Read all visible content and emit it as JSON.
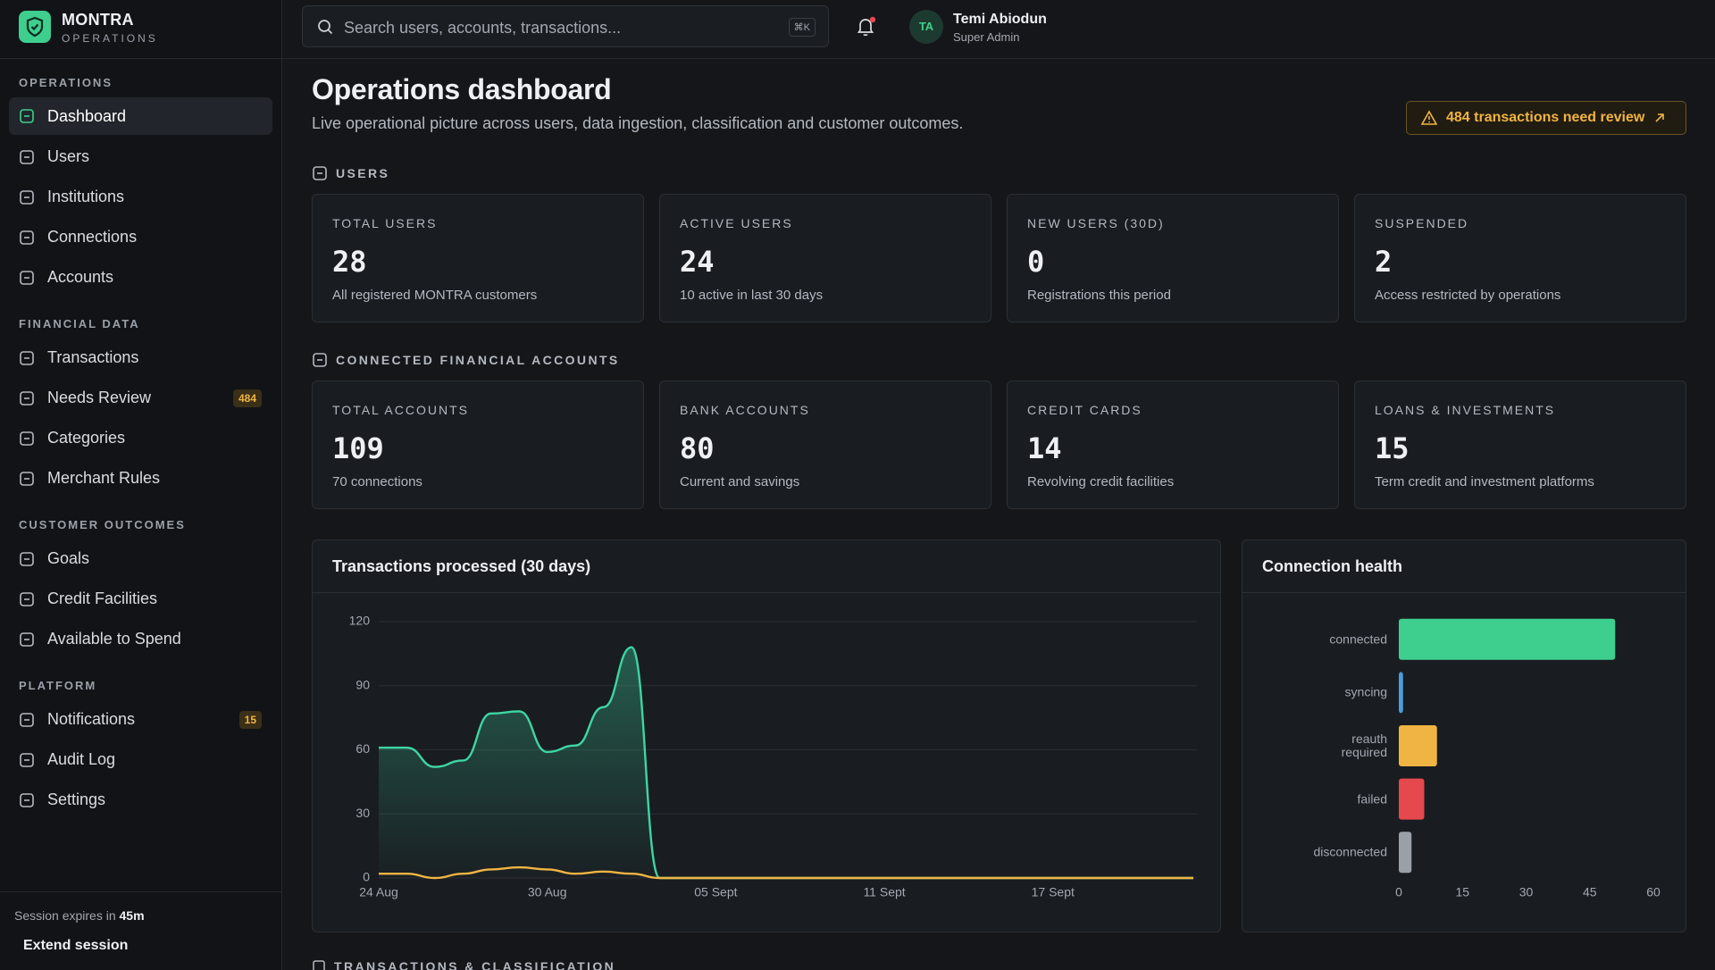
{
  "brand": {
    "name": "MONTRA",
    "tagline": "OPERATIONS"
  },
  "search": {
    "placeholder": "Search users, accounts, transactions...",
    "shortcut": "⌘K"
  },
  "user": {
    "initials": "TA",
    "name": "Temi Abiodun",
    "role": "Super Admin"
  },
  "nav": [
    {
      "title": "OPERATIONS",
      "items": [
        {
          "label": "Dashboard",
          "active": true
        },
        {
          "label": "Users"
        },
        {
          "label": "Institutions"
        },
        {
          "label": "Connections"
        },
        {
          "label": "Accounts"
        }
      ]
    },
    {
      "title": "FINANCIAL DATA",
      "items": [
        {
          "label": "Transactions"
        },
        {
          "label": "Needs Review",
          "badge": 484
        },
        {
          "label": "Categories"
        },
        {
          "label": "Merchant Rules"
        }
      ]
    },
    {
      "title": "CUSTOMER OUTCOMES",
      "items": [
        {
          "label": "Goals"
        },
        {
          "label": "Credit Facilities"
        },
        {
          "label": "Available to Spend"
        }
      ]
    },
    {
      "title": "PLATFORM",
      "items": [
        {
          "label": "Notifications",
          "badge": 15
        },
        {
          "label": "Audit Log"
        },
        {
          "label": "Settings"
        }
      ]
    }
  ],
  "session": {
    "text": "Session expires in",
    "time": "45m",
    "action": "Extend session"
  },
  "page": {
    "title": "Operations dashboard",
    "subtitle": "Live operational picture across users, data ingestion, classification and customer outcomes.",
    "alert": "484 transactions need review"
  },
  "sections": [
    {
      "title": "USERS",
      "cards": [
        {
          "label": "TOTAL USERS",
          "value": 28,
          "note": "All registered MONTRA customers"
        },
        {
          "label": "ACTIVE USERS",
          "value": 24,
          "note": "10 active in last 30 days"
        },
        {
          "label": "NEW USERS (30D)",
          "value": 0,
          "note": "Registrations this period"
        },
        {
          "label": "SUSPENDED",
          "value": 2,
          "note": "Access restricted by operations"
        }
      ]
    },
    {
      "title": "CONNECTED FINANCIAL ACCOUNTS",
      "cards": [
        {
          "label": "TOTAL ACCOUNTS",
          "value": 109,
          "note": "70 connections"
        },
        {
          "label": "BANK ACCOUNTS",
          "value": 80,
          "note": "Current and savings"
        },
        {
          "label": "CREDIT CARDS",
          "value": 14,
          "note": "Revolving credit facilities"
        },
        {
          "label": "LOANS & INVESTMENTS",
          "value": 15,
          "note": "Term credit and investment platforms"
        }
      ]
    }
  ],
  "next_section": "TRANSACTIONS & CLASSIFICATION",
  "chart_data": [
    {
      "type": "line",
      "title": "Transactions processed (30 days)",
      "categories": [
        "24 Aug",
        null,
        null,
        null,
        null,
        null,
        "30 Aug",
        null,
        null,
        null,
        null,
        null,
        "05 Sept",
        null,
        null,
        null,
        null,
        null,
        "11 Sept",
        null,
        null,
        null,
        null,
        null,
        "17 Sept",
        null,
        null,
        null,
        null,
        null
      ],
      "series": [
        {
          "color": "#3dd6a3",
          "area": true,
          "values": [
            61,
            61,
            52,
            55,
            77,
            78,
            59,
            62,
            80,
            108,
            0,
            0,
            0,
            0,
            0,
            0,
            0,
            0,
            0,
            0,
            0,
            0,
            0,
            0,
            0,
            0,
            0,
            0,
            0,
            0
          ]
        },
        {
          "color": "#f0b442",
          "area": false,
          "values": [
            2,
            2,
            0,
            2,
            4,
            5,
            4,
            2,
            3,
            2,
            0,
            0,
            0,
            0,
            0,
            0,
            0,
            0,
            0,
            0,
            0,
            0,
            0,
            0,
            0,
            0,
            0,
            0,
            0,
            0
          ]
        }
      ],
      "ylim": [
        0,
        120
      ],
      "yticks": [
        0,
        30,
        60,
        90,
        120
      ],
      "grid": true
    },
    {
      "type": "bar",
      "orientation": "horizontal",
      "title": "Connection health",
      "categories": [
        "connected",
        "syncing",
        "reauth required",
        "failed",
        "disconnected"
      ],
      "values": [
        51,
        1,
        9,
        6,
        3
      ],
      "colors": [
        "#3ecf8e",
        "#4a9eda",
        "#f0b442",
        "#e5484d",
        "#9aa0a8"
      ],
      "xlim": [
        0,
        60
      ],
      "xticks": [
        0,
        15,
        30,
        45,
        60
      ],
      "grid": false
    }
  ]
}
